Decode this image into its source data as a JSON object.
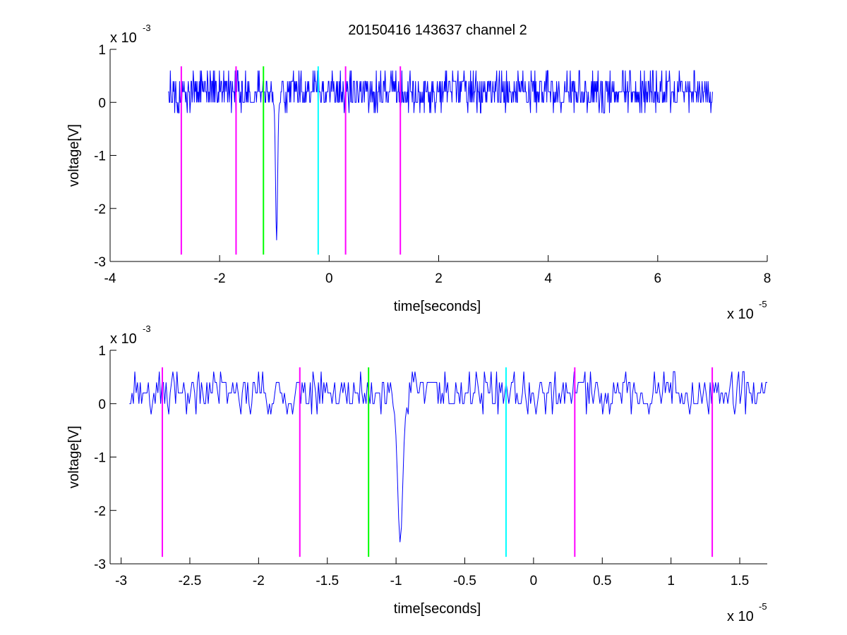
{
  "figure": {
    "title": "20150416 143637 channel 2"
  },
  "colors": {
    "signal": "#0000ff",
    "marker_magenta": "#ff00ff",
    "marker_green": "#00ff00",
    "marker_cyan": "#00ffff",
    "axes": "#000000",
    "background": "#ffffff"
  },
  "chart_data": [
    {
      "type": "line",
      "name": "top",
      "title": "20150416 143637 channel 2",
      "xlabel": "time[seconds]",
      "ylabel": "voltage[V]",
      "x_multiplier": {
        "base": "x 10",
        "exp": "-5"
      },
      "y_multiplier": {
        "base": "x 10",
        "exp": "-3"
      },
      "xlim": [
        -4,
        8
      ],
      "ylim": [
        -3,
        1
      ],
      "xticks": [
        -4,
        -2,
        0,
        2,
        4,
        6,
        8
      ],
      "xtick_labels": [
        "-4",
        "-2",
        "0",
        "2",
        "4",
        "6",
        "8"
      ],
      "yticks": [
        -3,
        -2,
        -1,
        0,
        1
      ],
      "ytick_labels": [
        "-3",
        "-2",
        "-1",
        "0",
        "1"
      ],
      "grid": false,
      "signal": {
        "x_start": -2.94,
        "x_end": 7.0,
        "baseline": 0.2,
        "spike": {
          "x": -0.96,
          "min": -2.6
        }
      },
      "markers": [
        {
          "x": -2.7,
          "color": "magenta",
          "ymin": -2.87,
          "ymax": 0.68
        },
        {
          "x": -1.7,
          "color": "magenta",
          "ymin": -2.87,
          "ymax": 0.68
        },
        {
          "x": -1.2,
          "color": "green",
          "ymin": -2.87,
          "ymax": 0.68
        },
        {
          "x": -0.2,
          "color": "cyan",
          "ymin": -2.87,
          "ymax": 0.68
        },
        {
          "x": 0.3,
          "color": "magenta",
          "ymin": -2.87,
          "ymax": 0.68
        },
        {
          "x": 1.3,
          "color": "magenta",
          "ymin": -2.87,
          "ymax": 0.68
        }
      ]
    },
    {
      "type": "line",
      "name": "bottom",
      "xlabel": "time[seconds]",
      "ylabel": "voltage[V]",
      "x_multiplier": {
        "base": "x 10",
        "exp": "-5"
      },
      "y_multiplier": {
        "base": "x 10",
        "exp": "-3"
      },
      "xlim": [
        -3.08,
        1.7
      ],
      "ylim": [
        -3,
        1
      ],
      "xticks": [
        -3,
        -2.5,
        -2,
        -1.5,
        -1,
        -0.5,
        0,
        0.5,
        1,
        1.5
      ],
      "xtick_labels": [
        "-3",
        "-2.5",
        "-2",
        "-1.5",
        "-1",
        "-0.5",
        "0",
        "0.5",
        "1",
        "1.5"
      ],
      "yticks": [
        -3,
        -2,
        -1,
        0,
        1
      ],
      "ytick_labels": [
        "-3",
        "-2",
        "-1",
        "0",
        "1"
      ],
      "grid": false,
      "signal": {
        "x_start": -2.94,
        "x_end": 1.7,
        "baseline": 0.2,
        "spike": {
          "x": -0.97,
          "min": -2.6
        }
      },
      "markers": [
        {
          "x": -2.7,
          "color": "magenta",
          "ymin": -2.87,
          "ymax": 0.68
        },
        {
          "x": -1.7,
          "color": "magenta",
          "ymin": -2.87,
          "ymax": 0.68
        },
        {
          "x": -1.2,
          "color": "green",
          "ymin": -2.87,
          "ymax": 0.68
        },
        {
          "x": -0.2,
          "color": "cyan",
          "ymin": -2.87,
          "ymax": 0.68
        },
        {
          "x": 0.3,
          "color": "magenta",
          "ymin": -2.87,
          "ymax": 0.68
        },
        {
          "x": 1.3,
          "color": "magenta",
          "ymin": -2.87,
          "ymax": 0.68
        }
      ]
    }
  ]
}
